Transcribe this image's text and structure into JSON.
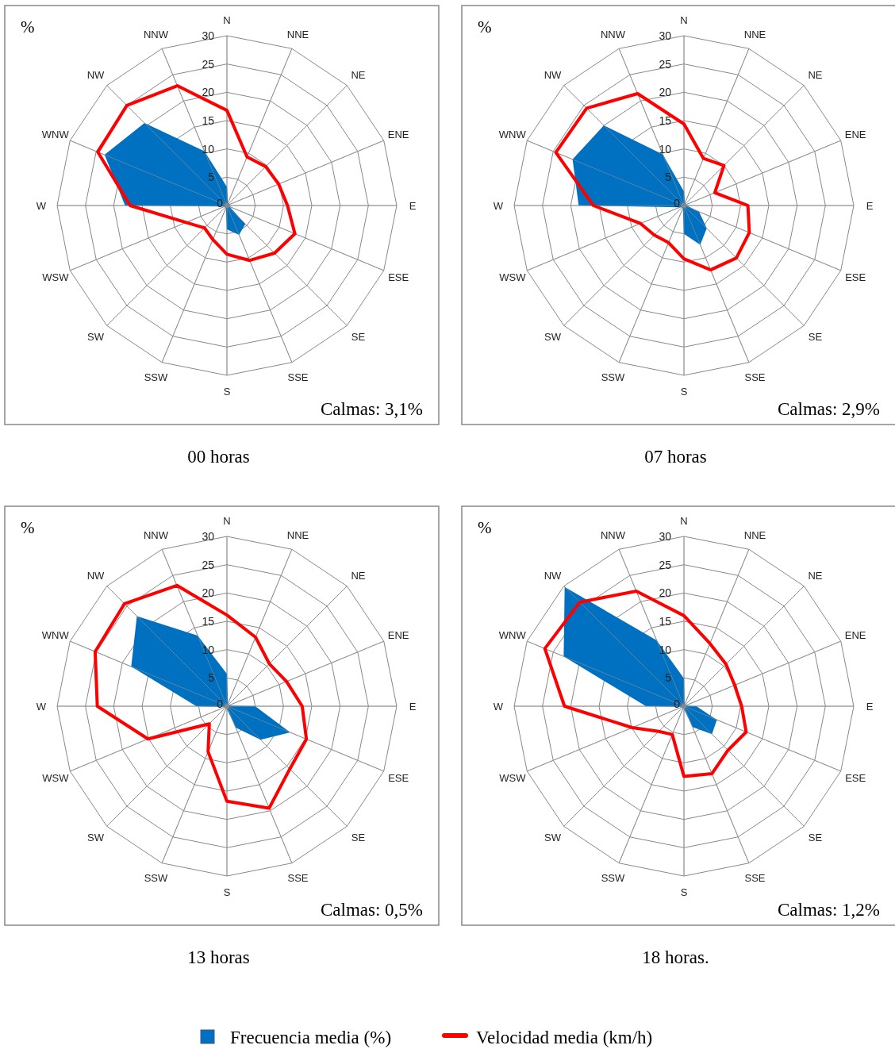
{
  "chart_data": [
    {
      "type": "radar",
      "title": "00 horas",
      "ylabel": "%",
      "annotations": [
        "Calmas: 3,1%"
      ],
      "categories": [
        "N",
        "NNE",
        "NE",
        "ENE",
        "E",
        "ESE",
        "SE",
        "SSE",
        "S",
        "SSW",
        "SW",
        "WSW",
        "W",
        "WNW",
        "NW",
        "NNW"
      ],
      "ylim": [
        0,
        30
      ],
      "yticks": [
        0,
        5,
        10,
        15,
        20,
        25,
        30
      ],
      "grid": true,
      "legend": "bottom",
      "series": [
        {
          "name": "Frecuencia media (%)",
          "color": "#0070c0",
          "values": [
            3.3,
            0.5,
            0.5,
            0.5,
            0.5,
            0.5,
            4.6,
            5.6,
            4.2,
            0.5,
            0.5,
            0.5,
            18,
            23.4,
            20.6,
            10.4
          ]
        },
        {
          "name": "Velocidad media (km/h)",
          "color": "#ff0000",
          "values": [
            16.8,
            9.3,
            9.7,
            9.9,
            10.7,
            13,
            11.9,
            10.5,
            8.6,
            6.5,
            5.6,
            7.8,
            17.1,
            24.7,
            25,
            22.9
          ]
        }
      ]
    },
    {
      "type": "radar",
      "title": "07 horas",
      "ylabel": "%",
      "annotations": [
        "Calmas: 2,9%"
      ],
      "categories": [
        "N",
        "NNE",
        "NE",
        "ENE",
        "E",
        "ESE",
        "SE",
        "SSE",
        "S",
        "SSW",
        "SW",
        "WSW",
        "W",
        "WNW",
        "NW",
        "NNW"
      ],
      "ylim": [
        0,
        30
      ],
      "yticks": [
        0,
        5,
        10,
        15,
        20,
        25,
        30
      ],
      "grid": true,
      "series": [
        {
          "color": "#0070c0",
          "values": [
            2.5,
            0.5,
            0.5,
            0.3,
            0.5,
            2.9,
            5.7,
            7.5,
            5,
            0.5,
            0.5,
            0.8,
            18.6,
            21.3,
            20,
            9.8
          ]
        },
        {
          "color": "#ff0000",
          "values": [
            14.4,
            9,
            10,
            5.9,
            11.3,
            12.5,
            13.1,
            12.3,
            9.4,
            7.1,
            7.4,
            8.3,
            16,
            24.5,
            24.3,
            21.4
          ]
        }
      ]
    },
    {
      "type": "radar",
      "title": "13 horas",
      "ylabel": "%",
      "annotations": [
        "Calmas: 0,5%"
      ],
      "categories": [
        "N",
        "NNE",
        "NE",
        "ENE",
        "E",
        "ESE",
        "SE",
        "SSE",
        "S",
        "SSW",
        "SW",
        "WSW",
        "W",
        "WNW",
        "NW",
        "NNW"
      ],
      "ylim": [
        0,
        30
      ],
      "yticks": [
        0,
        5,
        10,
        15,
        20,
        25,
        30
      ],
      "grid": true,
      "series": [
        {
          "color": "#0070c0",
          "values": [
            5.7,
            0.5,
            0.3,
            0.3,
            5,
            12.1,
            8.4,
            4.1,
            0.5,
            0.3,
            0.3,
            0.3,
            5.4,
            18.3,
            22.5,
            13.5
          ]
        },
        {
          "color": "#ff0000",
          "values": [
            16.1,
            13.2,
            10.6,
            11.4,
            13.3,
            15.2,
            15.7,
            19.5,
            16.8,
            8.7,
            4.4,
            15.1,
            22.9,
            25.2,
            25.6,
            23.1
          ]
        }
      ]
    },
    {
      "type": "radar",
      "title": "18 horas.",
      "ylabel": "%",
      "annotations": [
        "Calmas: 1,2%"
      ],
      "categories": [
        "N",
        "NNE",
        "NE",
        "ENE",
        "E",
        "ESE",
        "SE",
        "SSE",
        "S",
        "SSW",
        "SW",
        "WSW",
        "W",
        "WNW",
        "NW",
        "NNW"
      ],
      "ylim": [
        0,
        30
      ],
      "yticks": [
        0,
        5,
        10,
        15,
        20,
        25,
        30
      ],
      "grid": true,
      "series": [
        {
          "color": "#0070c0",
          "values": [
            4.9,
            0.3,
            0.3,
            0.3,
            2.2,
            6.3,
            7,
            4,
            0.5,
            0.3,
            0.3,
            0.3,
            6.7,
            23,
            29.8,
            12.6
          ]
        },
        {
          "color": "#ff0000",
          "values": [
            16,
            12,
            10.5,
            9.7,
            10.2,
            11.9,
            11,
            12.9,
            12.4,
            5.4,
            6.3,
            9.9,
            21.1,
            26.6,
            26,
            22
          ]
        }
      ]
    }
  ]
}
